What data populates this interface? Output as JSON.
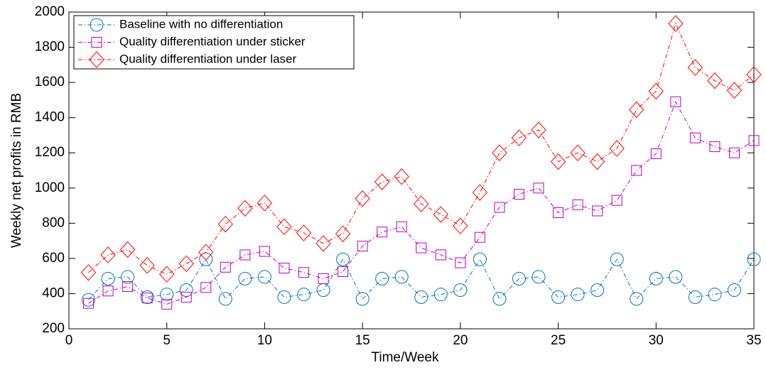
{
  "chart_data": {
    "type": "line",
    "xlabel": "Time/Week",
    "ylabel": "Weekly net profits in RMB",
    "x": [
      1,
      2,
      3,
      4,
      5,
      6,
      7,
      8,
      9,
      10,
      11,
      12,
      13,
      14,
      15,
      16,
      17,
      18,
      19,
      20,
      21,
      22,
      23,
      24,
      25,
      26,
      27,
      28,
      29,
      30,
      31,
      32,
      33,
      34,
      35
    ],
    "series": [
      {
        "name": "Baseline with no differentiation",
        "color": "#0072bd",
        "marker": "circle",
        "values": [
          365,
          485,
          495,
          380,
          395,
          420,
          595,
          370,
          485,
          495,
          380,
          395,
          420,
          595,
          370,
          485,
          495,
          380,
          395,
          420,
          595,
          370,
          485,
          495,
          380,
          395,
          420,
          595,
          370,
          485,
          495,
          380,
          395,
          420,
          595
        ]
      },
      {
        "name": "Quality differentiation under sticker",
        "color": "#bf00bf",
        "marker": "square",
        "values": [
          345,
          415,
          440,
          375,
          340,
          380,
          435,
          550,
          620,
          640,
          545,
          520,
          485,
          525,
          670,
          750,
          780,
          660,
          620,
          575,
          720,
          890,
          965,
          1000,
          860,
          905,
          870,
          930,
          1100,
          1195,
          1490,
          1285,
          1235,
          1200,
          1270
        ]
      },
      {
        "name": "Quality differentiation under laser",
        "color": "#ff0000",
        "marker": "diamond",
        "values": [
          520,
          620,
          650,
          560,
          510,
          570,
          635,
          795,
          885,
          915,
          780,
          745,
          685,
          740,
          940,
          1035,
          1065,
          910,
          850,
          785,
          975,
          1200,
          1285,
          1330,
          1150,
          1200,
          1150,
          1225,
          1445,
          1550,
          1935,
          1685,
          1610,
          1555,
          1645
        ]
      }
    ],
    "xlim": [
      0,
      35
    ],
    "ylim": [
      200,
      2000
    ],
    "xticks": [
      0,
      5,
      10,
      15,
      20,
      25,
      30,
      35
    ],
    "yticks": [
      200,
      400,
      600,
      800,
      1000,
      1200,
      1400,
      1600,
      1800,
      2000
    ],
    "grid": false,
    "legend": "upper left"
  }
}
